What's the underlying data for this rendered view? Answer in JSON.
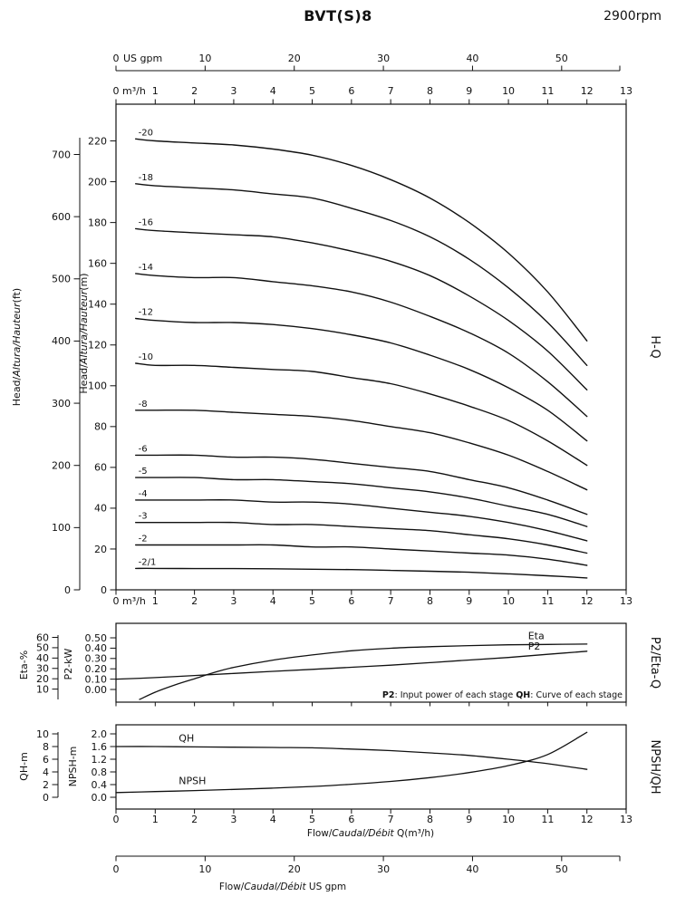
{
  "title": "BVT(S)8",
  "rpm": "2900rpm",
  "top_axis": {
    "zero_label": "0",
    "unit": "US gpm",
    "ticks": [
      10,
      20,
      30,
      40,
      50
    ]
  },
  "m3h_axis": {
    "zero_label": "0",
    "unit": "m³/h",
    "ticks": [
      1,
      2,
      3,
      4,
      5,
      6,
      7,
      8,
      9,
      10,
      11,
      12,
      13
    ]
  },
  "bottom_x_axis": {
    "ticks": [
      0,
      1,
      2,
      3,
      4,
      5,
      6,
      7,
      8,
      9,
      10,
      11,
      12,
      13
    ],
    "label": {
      "pre": "Flow/",
      "it": "Caudal/Débit",
      "unit": " Q(m³/h)"
    }
  },
  "bottom_gpm_axis": {
    "ticks": [
      0,
      10,
      20,
      30,
      40,
      50
    ],
    "label": {
      "pre": "Flow/",
      "it": "Caudal/Débit",
      "unit": " US gpm"
    }
  },
  "side_labels": {
    "hq": "H-Q",
    "p2eta": "P2/Eta-Q",
    "npsh": "NPSH/QH"
  },
  "chart_data": [
    {
      "id": "hq",
      "type": "line",
      "title": "H-Q",
      "xlim": [
        0,
        13
      ],
      "x_unit": "m³/h",
      "y_axis_m": {
        "label": {
          "pre": "Head/",
          "it": "Altura/Hauteur",
          "unit": "(m)"
        },
        "ticks": [
          0,
          20,
          40,
          60,
          80,
          100,
          120,
          140,
          160,
          180,
          200,
          220
        ],
        "lim": [
          0,
          238
        ]
      },
      "y_axis_ft": {
        "label": {
          "pre": "Head/",
          "it": "Altura/Hauteur",
          "unit": "(ft)"
        },
        "ticks": [
          0,
          100,
          200,
          300,
          400,
          500,
          600,
          700
        ]
      },
      "x": [
        0.5,
        1,
        2,
        3,
        4,
        5,
        6,
        7,
        8,
        9,
        10,
        11,
        12
      ],
      "series": [
        {
          "name": "-20",
          "values": [
            221,
            220,
            219,
            218,
            216,
            213,
            208,
            201,
            192,
            180,
            165,
            146,
            122
          ]
        },
        {
          "name": "-18",
          "values": [
            199,
            198,
            197,
            196,
            194,
            192,
            187,
            181,
            173,
            162,
            148,
            131,
            110
          ]
        },
        {
          "name": "-16",
          "values": [
            177,
            176,
            175,
            174,
            173,
            170,
            166,
            161,
            154,
            144,
            132,
            117,
            98
          ]
        },
        {
          "name": "-14",
          "values": [
            155,
            154,
            153,
            153,
            151,
            149,
            146,
            141,
            134,
            126,
            116,
            102,
            85
          ]
        },
        {
          "name": "-12",
          "values": [
            133,
            132,
            131,
            131,
            130,
            128,
            125,
            121,
            115,
            108,
            99,
            88,
            73
          ]
        },
        {
          "name": "-10",
          "values": [
            111,
            110,
            110,
            109,
            108,
            107,
            104,
            101,
            96,
            90,
            83,
            73,
            61
          ]
        },
        {
          "name": "-8",
          "values": [
            88,
            88,
            88,
            87,
            86,
            85,
            83,
            80,
            77,
            72,
            66,
            58,
            49
          ]
        },
        {
          "name": "-6",
          "values": [
            66,
            66,
            66,
            65,
            65,
            64,
            62,
            60,
            58,
            54,
            50,
            44,
            37
          ]
        },
        {
          "name": "-5",
          "values": [
            55,
            55,
            55,
            54,
            54,
            53,
            52,
            50,
            48,
            45,
            41,
            37,
            31
          ]
        },
        {
          "name": "-4",
          "values": [
            44,
            44,
            44,
            44,
            43,
            43,
            42,
            40,
            38,
            36,
            33,
            29,
            24
          ]
        },
        {
          "name": "-3",
          "values": [
            33,
            33,
            33,
            33,
            32,
            32,
            31,
            30,
            29,
            27,
            25,
            22,
            18
          ]
        },
        {
          "name": "-2",
          "values": [
            22,
            22,
            22,
            22,
            22,
            21,
            21,
            20,
            19,
            18,
            17,
            15,
            12
          ]
        },
        {
          "name": "-2/1",
          "values": [
            10.5,
            10.5,
            10.4,
            10.4,
            10.3,
            10.1,
            9.9,
            9.5,
            9.1,
            8.6,
            7.8,
            6.9,
            5.8
          ]
        }
      ]
    },
    {
      "id": "p2eta",
      "type": "line",
      "title": "P2/Eta-Q",
      "eta_axis": {
        "label": "Eta-%",
        "ticks": [
          10,
          20,
          30,
          40,
          50,
          60
        ],
        "lim": [
          0,
          73
        ]
      },
      "p2_axis": {
        "label": "P2-kW",
        "ticks": [
          "0.00",
          "0.10",
          "0.20",
          "0.30",
          "0.40",
          "0.50"
        ],
        "lim": [
          0,
          0.62
        ]
      },
      "series": [
        {
          "name": "Eta",
          "axis": "eta",
          "x": [
            0.6,
            1,
            1.5,
            2,
            2.5,
            3,
            4,
            5,
            6,
            7,
            8,
            9,
            10,
            11,
            12
          ],
          "values": [
            0,
            7,
            14,
            20,
            26,
            31,
            38,
            43,
            47,
            49.5,
            51,
            52,
            52.8,
            53.2,
            53.5
          ]
        },
        {
          "name": "P2",
          "axis": "p2",
          "x": [
            0,
            1,
            2,
            3,
            4,
            5,
            6,
            7,
            8,
            9,
            10,
            11,
            12
          ],
          "values": [
            0.1,
            0.115,
            0.135,
            0.155,
            0.175,
            0.195,
            0.215,
            0.235,
            0.26,
            0.285,
            0.31,
            0.34,
            0.37
          ]
        }
      ],
      "note": {
        "p2_term": "P2",
        "p2_text": ": Input power of each stage ",
        "qh_term": "QH",
        "qh_text": ": Curve of each stage"
      }
    },
    {
      "id": "npshqh",
      "type": "line",
      "title": "NPSH/QH",
      "qh_axis": {
        "label": "QH-m",
        "ticks": [
          0,
          2,
          4,
          6,
          8,
          10
        ],
        "lim": [
          0,
          11.5
        ]
      },
      "npsh_axis": {
        "label": "NPSH-m",
        "ticks": [
          "0.0",
          "0.4",
          "0.8",
          "1.2",
          "1.6",
          "2.0"
        ],
        "lim": [
          0,
          2.3
        ]
      },
      "series": [
        {
          "name": "QH",
          "axis": "qh",
          "x": [
            0,
            1,
            2,
            3,
            4,
            5,
            6,
            7,
            8,
            9,
            10,
            11,
            12
          ],
          "values": [
            8.0,
            8.0,
            7.95,
            7.9,
            7.85,
            7.8,
            7.6,
            7.35,
            7.0,
            6.6,
            6.0,
            5.3,
            4.4
          ]
        },
        {
          "name": "NPSH",
          "axis": "npsh",
          "x": [
            0,
            1,
            2,
            3,
            4,
            5,
            6,
            7,
            8,
            9,
            10,
            11,
            12
          ],
          "values": [
            0.15,
            0.18,
            0.21,
            0.25,
            0.29,
            0.34,
            0.41,
            0.5,
            0.62,
            0.78,
            1.0,
            1.35,
            2.05
          ]
        }
      ]
    }
  ]
}
